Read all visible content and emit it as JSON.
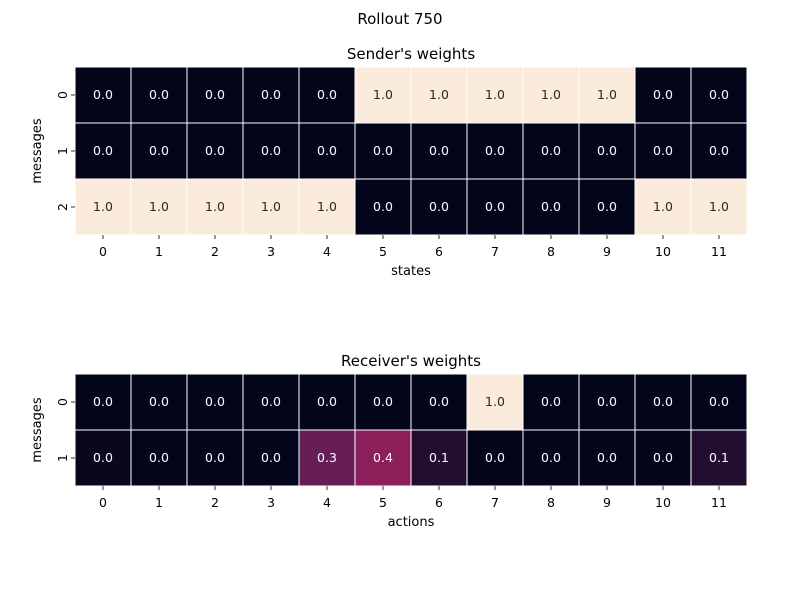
{
  "suptitle": "Rollout 750",
  "chart_data": [
    {
      "type": "heatmap",
      "title": "Sender's weights",
      "xlabel": "states",
      "ylabel": "messages",
      "x_tick_labels": [
        "0",
        "1",
        "2",
        "3",
        "4",
        "5",
        "6",
        "7",
        "8",
        "9",
        "10",
        "11"
      ],
      "y_tick_labels": [
        "0",
        "1",
        "2"
      ],
      "values": [
        [
          0.0,
          0.0,
          0.0,
          0.0,
          0.0,
          1.0,
          1.0,
          1.0,
          1.0,
          1.0,
          0.0,
          0.0
        ],
        [
          0.0,
          0.0,
          0.0,
          0.0,
          0.0,
          0.0,
          0.0,
          0.0,
          0.0,
          0.0,
          0.0,
          0.0
        ],
        [
          1.0,
          1.0,
          1.0,
          1.0,
          1.0,
          0.0,
          0.0,
          0.0,
          0.0,
          0.0,
          1.0,
          1.0
        ]
      ],
      "annotations": [
        [
          "0.0",
          "0.0",
          "0.0",
          "0.0",
          "0.0",
          "1.0",
          "1.0",
          "1.0",
          "1.0",
          "1.0",
          "0.0",
          "0.0"
        ],
        [
          "0.0",
          "0.0",
          "0.0",
          "0.0",
          "0.0",
          "0.0",
          "0.0",
          "0.0",
          "0.0",
          "0.0",
          "0.0",
          "0.0"
        ],
        [
          "1.0",
          "1.0",
          "1.0",
          "1.0",
          "1.0",
          "0.0",
          "0.0",
          "0.0",
          "0.0",
          "0.0",
          "1.0",
          "1.0"
        ]
      ],
      "colorbar": false,
      "colormap": "rocket"
    },
    {
      "type": "heatmap",
      "title": "Receiver's weights",
      "xlabel": "actions",
      "ylabel": "messages",
      "x_tick_labels": [
        "0",
        "1",
        "2",
        "3",
        "4",
        "5",
        "6",
        "7",
        "8",
        "9",
        "10",
        "11"
      ],
      "y_tick_labels": [
        "0",
        "1"
      ],
      "values": [
        [
          0.0,
          0.0,
          0.0,
          0.0,
          0.0,
          0.0,
          0.0,
          1.0,
          0.0,
          0.0,
          0.0,
          0.0
        ],
        [
          0.02,
          0.0,
          0.0,
          0.0,
          0.3,
          0.4,
          0.1,
          0.0,
          0.0,
          0.0,
          0.0,
          0.1
        ]
      ],
      "annotations": [
        [
          "0.0",
          "0.0",
          "0.0",
          "0.0",
          "0.0",
          "0.0",
          "0.0",
          "1.0",
          "0.0",
          "0.0",
          "0.0",
          "0.0"
        ],
        [
          "0.0",
          "0.0",
          "0.0",
          "0.0",
          "0.3",
          "0.4",
          "0.1",
          "0.0",
          "0.0",
          "0.0",
          "0.0",
          "0.1"
        ]
      ],
      "colorbar": false,
      "colormap": "rocket"
    }
  ]
}
